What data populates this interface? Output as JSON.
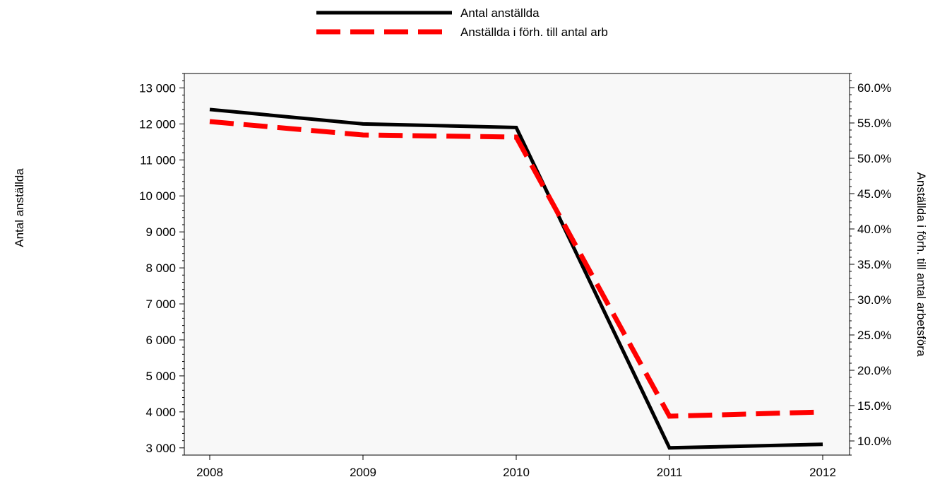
{
  "chart_data": {
    "type": "line",
    "x": [
      "2008",
      "2009",
      "2010",
      "2011",
      "2012"
    ],
    "series": [
      {
        "name": "Antal anställda",
        "axis": "left",
        "color": "#000000",
        "dash": "solid",
        "values": [
          12400,
          12000,
          11900,
          3000,
          3100
        ]
      },
      {
        "name": "Anställda i förh. till antal arb",
        "axis": "right",
        "color": "#ff0000",
        "dash": "dashed",
        "values": [
          55.2,
          53.3,
          53.0,
          13.5,
          14.1
        ]
      }
    ],
    "y_left": {
      "label": "Antal anställda",
      "range": [
        2800,
        13400
      ],
      "ticks": [
        3000,
        4000,
        5000,
        6000,
        7000,
        8000,
        9000,
        10000,
        11000,
        12000,
        13000
      ],
      "tick_labels": [
        "3 000",
        "4 000",
        "5 000",
        "6 000",
        "7 000",
        "8 000",
        "9 000",
        "10 000",
        "11 000",
        "12 000",
        "13 000"
      ]
    },
    "y_right": {
      "label": "Anställda i förh. till antal arbetsföra",
      "range": [
        8.0,
        62.0
      ],
      "ticks": [
        10,
        15,
        20,
        25,
        30,
        35,
        40,
        45,
        50,
        55,
        60
      ],
      "tick_labels": [
        "10.0%",
        "15.0%",
        "20.0%",
        "25.0%",
        "30.0%",
        "35.0%",
        "40.0%",
        "45.0%",
        "50.0%",
        "55.0%",
        "60.0%"
      ]
    },
    "grid": false,
    "legend_position": "top-center",
    "plot_background": "#f8f8f8"
  }
}
